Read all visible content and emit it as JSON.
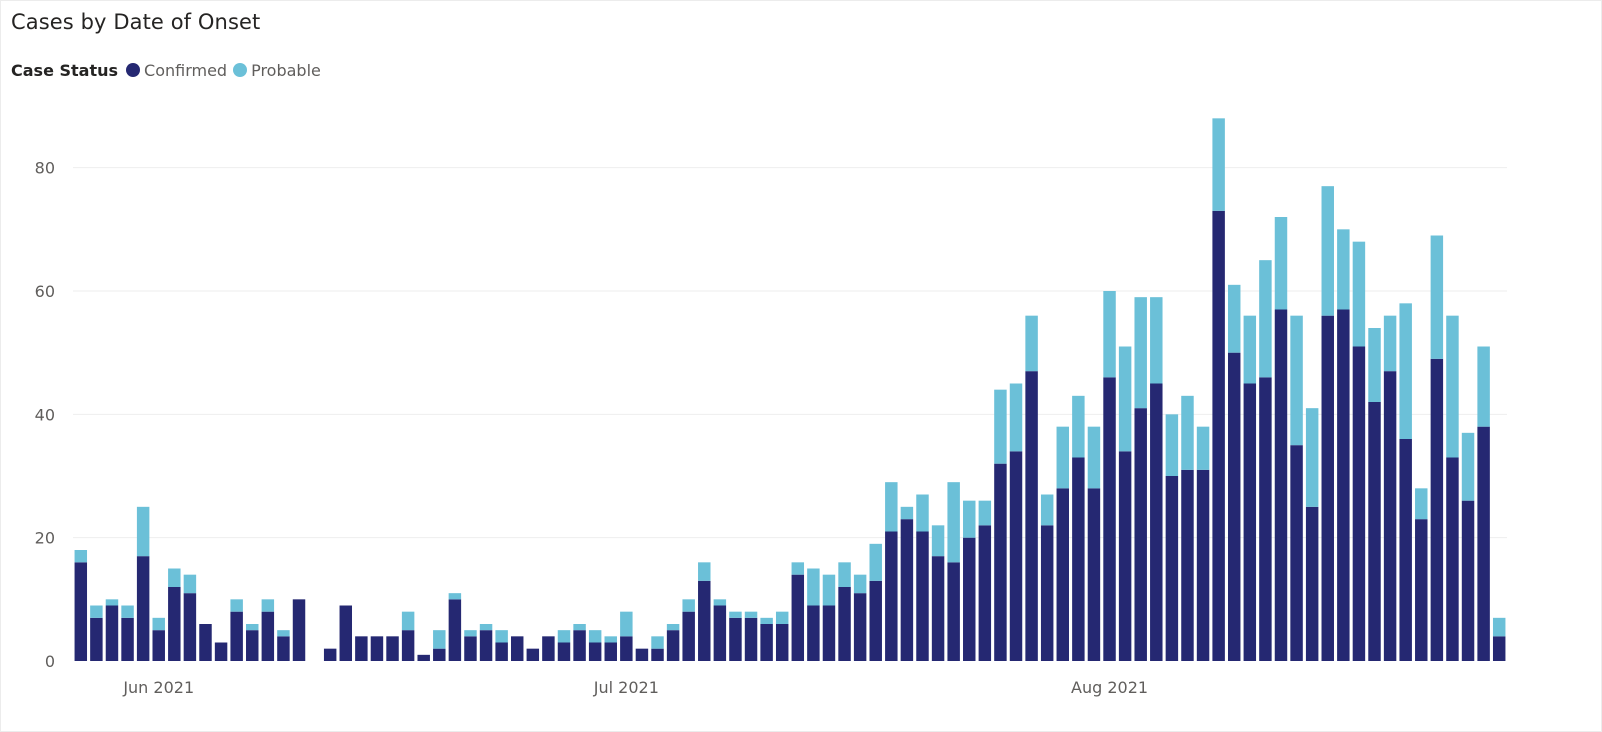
{
  "chart_data": {
    "type": "bar",
    "stacked": true,
    "title": "Cases by Date of Onset",
    "legend": {
      "title": "Case Status",
      "position": "top-left",
      "entries": [
        {
          "name": "Confirmed",
          "color": "#252872"
        },
        {
          "name": "Probable",
          "color": "#6BC0D8"
        }
      ]
    },
    "xlabel": "",
    "ylabel": "",
    "ylim": [
      0,
      90
    ],
    "y_ticks": [
      0,
      20,
      40,
      60,
      80
    ],
    "grid": true,
    "x_axis": {
      "type": "date",
      "start": "2021-05-27",
      "tick_labels": [
        {
          "date": "2021-06-01",
          "label": "Jun 2021"
        },
        {
          "date": "2021-07-01",
          "label": "Jul 2021"
        },
        {
          "date": "2021-08-01",
          "label": "Aug 2021"
        }
      ]
    },
    "series": [
      {
        "name": "Confirmed",
        "color": "#252872",
        "values": [
          16,
          7,
          9,
          7,
          17,
          5,
          12,
          11,
          6,
          3,
          8,
          5,
          8,
          4,
          10,
          0,
          2,
          9,
          4,
          4,
          4,
          5,
          1,
          2,
          10,
          4,
          5,
          3,
          4,
          2,
          4,
          3,
          5,
          3,
          3,
          4,
          2,
          2,
          5,
          8,
          13,
          9,
          7,
          7,
          6,
          6,
          14,
          9,
          9,
          12,
          11,
          13,
          21,
          23,
          21,
          17,
          16,
          20,
          22,
          32,
          34,
          47,
          22,
          28,
          33,
          28,
          46,
          34,
          41,
          45,
          30,
          31,
          31,
          73,
          50,
          45,
          46,
          57,
          35,
          25,
          56,
          57,
          51,
          42,
          47,
          36,
          23,
          49,
          33,
          26,
          38,
          4
        ]
      },
      {
        "name": "Probable",
        "color": "#6BC0D8",
        "values": [
          2,
          2,
          1,
          2,
          8,
          2,
          3,
          3,
          0,
          0,
          2,
          1,
          2,
          1,
          0,
          0,
          0,
          0,
          0,
          0,
          0,
          3,
          0,
          3,
          1,
          1,
          1,
          2,
          0,
          0,
          0,
          2,
          1,
          2,
          1,
          4,
          0,
          2,
          1,
          2,
          3,
          1,
          1,
          1,
          1,
          2,
          2,
          6,
          5,
          4,
          3,
          6,
          8,
          2,
          6,
          5,
          13,
          6,
          4,
          12,
          11,
          9,
          5,
          10,
          10,
          10,
          14,
          17,
          18,
          14,
          10,
          12,
          7,
          15,
          11,
          11,
          19,
          15,
          21,
          16,
          21,
          13,
          17,
          12,
          9,
          22,
          5,
          20,
          23,
          11,
          13,
          3
        ]
      }
    ]
  }
}
